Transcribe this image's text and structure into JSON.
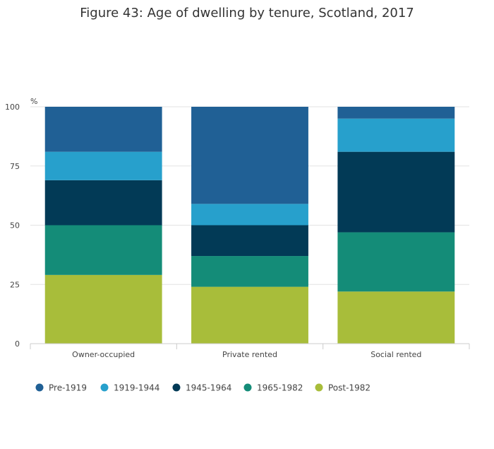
{
  "chart_data": {
    "type": "bar",
    "stacked": true,
    "title": "Figure 43: Age of dwelling by tenure, Scotland, 2017",
    "ylabel": "%",
    "ylim": [
      0,
      100
    ],
    "yticks": [
      0,
      25,
      50,
      75,
      100
    ],
    "grid": true,
    "legend_position": "bottom-left",
    "categories": [
      "Owner-occupied",
      "Private rented",
      "Social rented"
    ],
    "series": [
      {
        "name": "Post-1982",
        "color": "#a8bd3a",
        "values": [
          29,
          24,
          22
        ]
      },
      {
        "name": "1965-1982",
        "color": "#148c78",
        "values": [
          21,
          13,
          25
        ]
      },
      {
        "name": "1945-1964",
        "color": "#023a56",
        "values": [
          19,
          13,
          34
        ]
      },
      {
        "name": "1919-1944",
        "color": "#27a0cc",
        "values": [
          12,
          9,
          14
        ]
      },
      {
        "name": "Pre-1919",
        "color": "#206095",
        "values": [
          19,
          41,
          5
        ]
      }
    ],
    "legend_order": [
      "Pre-1919",
      "1919-1944",
      "1945-1964",
      "1965-1982",
      "Post-1982"
    ]
  }
}
